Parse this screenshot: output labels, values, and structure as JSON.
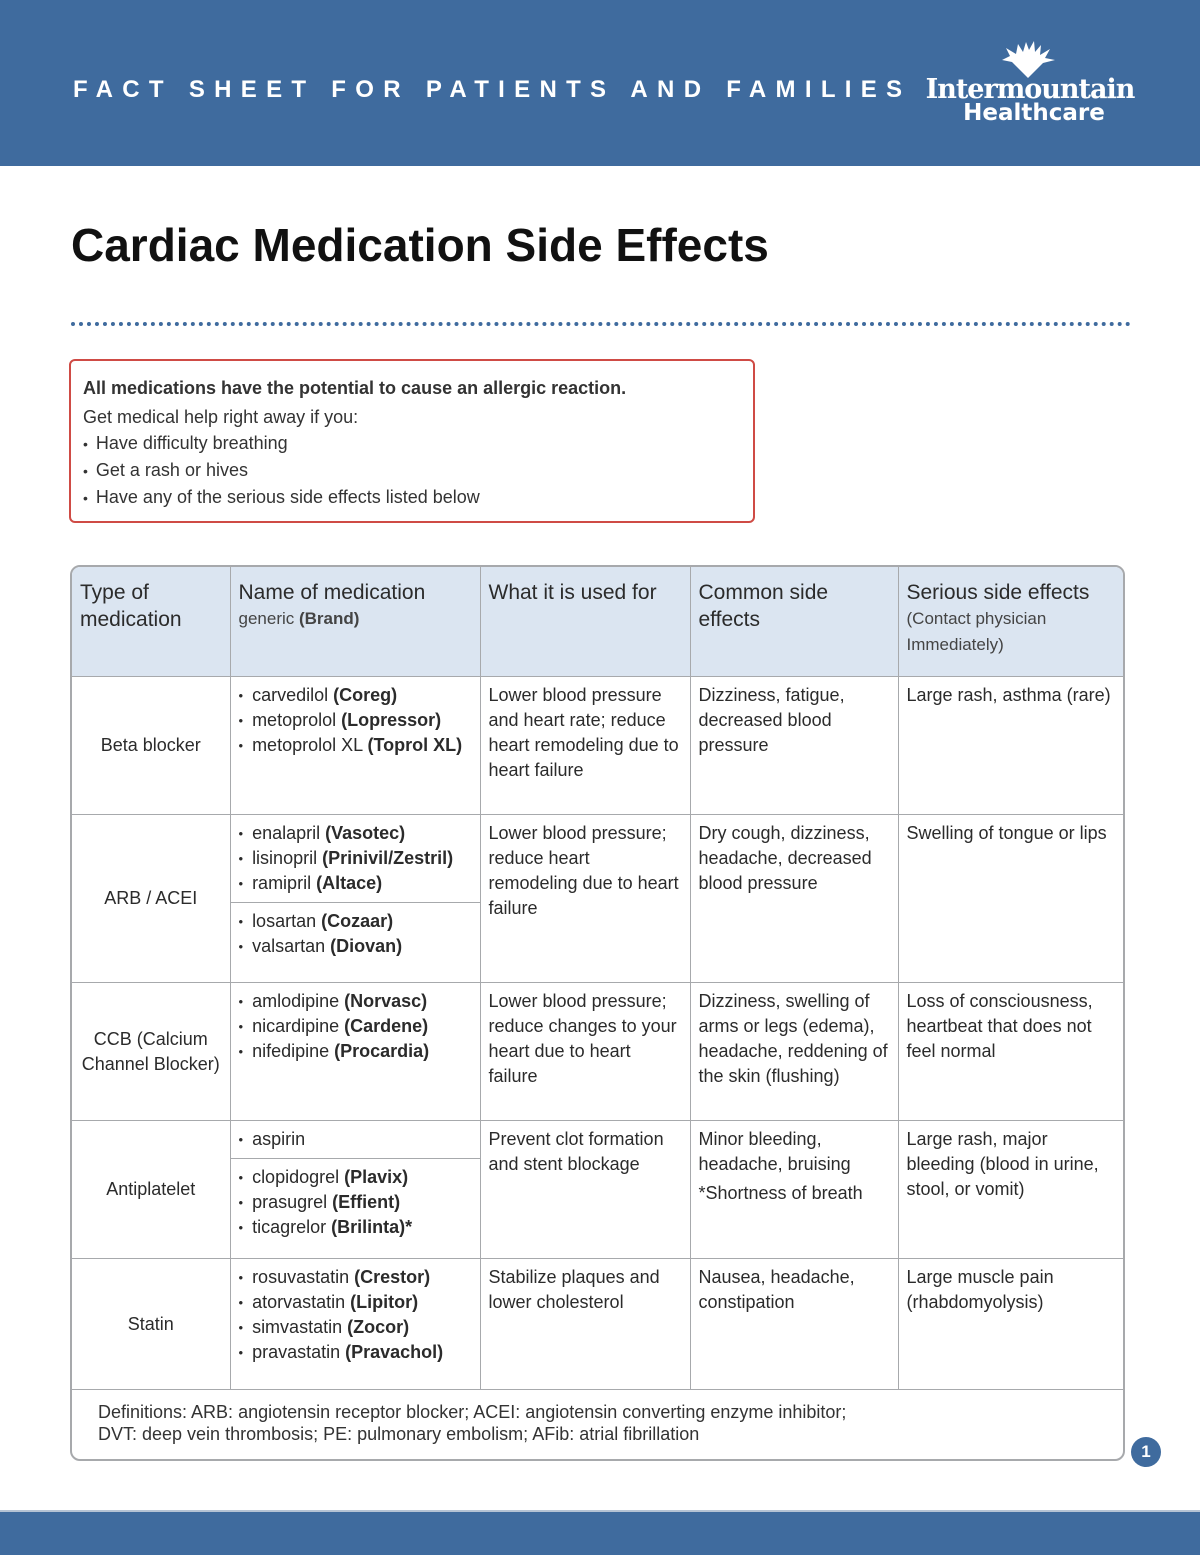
{
  "header": {
    "banner_text": "FACT SHEET FOR PATIENTS AND FAMILIES",
    "logo_name": "Intermountain",
    "logo_sub": "Healthcare",
    "brand_color": "#3f6b9e"
  },
  "title": "Cardiac Medication Side Effects",
  "alert": {
    "bold": "All medications have the potential to cause an allergic reaction.",
    "intro": "Get medical help right away if you:",
    "items": [
      "Have difficulty breathing",
      "Get a rash or hives",
      "Have any of the serious side effects listed below"
    ],
    "border_color": "#cf4b45"
  },
  "table": {
    "headers": [
      {
        "title": "Type of medication",
        "sub": ""
      },
      {
        "title": "Name of medication",
        "sub_plain": "generic ",
        "sub_bold": "(Brand)"
      },
      {
        "title": "What it is used for",
        "sub": ""
      },
      {
        "title": "Common side effects",
        "sub": ""
      },
      {
        "title": "Serious side effects",
        "sub": "(Contact physician Immediately)"
      }
    ],
    "rows": [
      {
        "type": "Beta blocker",
        "groups": [
          [
            [
              "carvedilol ",
              "(Coreg)"
            ],
            [
              "metoprolol ",
              "(Lopressor)"
            ],
            [
              "metoprolol XL ",
              "(Toprol XL)"
            ]
          ]
        ],
        "used_for": "Lower blood pressure and heart rate; reduce heart remodeling due to heart failure",
        "common": "Dizziness, fatigue, decreased blood pressure",
        "common_note": "",
        "serious": "Large rash, asthma (rare)"
      },
      {
        "type": "ARB / ACEI",
        "groups": [
          [
            [
              "enalapril ",
              "(Vasotec)"
            ],
            [
              "lisinopril ",
              "(Prinivil/Zestril)"
            ],
            [
              "ramipril ",
              "(Altace)"
            ]
          ],
          [
            [
              "losartan ",
              "(Cozaar)"
            ],
            [
              "valsartan ",
              "(Diovan)"
            ]
          ]
        ],
        "used_for": "Lower blood pressure; reduce heart remodeling due to heart failure",
        "common": "Dry cough, dizziness, headache, decreased blood pressure",
        "common_note": "",
        "serious": "Swelling of tongue or lips"
      },
      {
        "type": "CCB (Calcium Channel Blocker)",
        "groups": [
          [
            [
              "amlodipine ",
              "(Norvasc)"
            ],
            [
              "nicardipine ",
              "(Cardene)"
            ],
            [
              "nifedipine ",
              "(Procardia)"
            ]
          ]
        ],
        "used_for": "Lower blood pressure; reduce changes to your heart due to heart failure",
        "common": "Dizziness, swelling of arms or legs (edema), headache, reddening of the skin (flushing)",
        "common_note": "",
        "serious": "Loss of consciousness, heartbeat that does not feel normal"
      },
      {
        "type": "Antiplatelet",
        "groups": [
          [
            [
              "aspirin",
              ""
            ]
          ],
          [
            [
              "clopidogrel ",
              "(Plavix)"
            ],
            [
              "prasugrel ",
              "(Effient)"
            ],
            [
              "ticagrelor ",
              "(Brilinta)*"
            ]
          ]
        ],
        "used_for": "Prevent clot formation and stent blockage",
        "common": "Minor bleeding, headache, bruising",
        "common_note": "*Shortness of breath",
        "serious": "Large rash, major bleeding (blood in urine, stool, or vomit)"
      },
      {
        "type": "Statin",
        "groups": [
          [
            [
              "rosuvastatin ",
              "(Crestor)"
            ],
            [
              "atorvastatin ",
              "(Lipitor)"
            ],
            [
              "simvastatin ",
              "(Zocor)"
            ],
            [
              "pravastatin ",
              "(Pravachol)"
            ]
          ]
        ],
        "used_for": "Stabilize plaques and lower cholesterol",
        "common": "Nausea, headache, constipation",
        "common_note": "",
        "serious": "Large muscle pain (rhabdomyolysis)"
      }
    ],
    "definitions": [
      "Definitions: ARB: angiotensin receptor blocker; ACEI: angiotensin converting enzyme inhibitor;",
      "DVT: deep vein thrombosis; PE: pulmonary embolism; AFib: atrial fibrillation"
    ]
  },
  "page_number": "1"
}
